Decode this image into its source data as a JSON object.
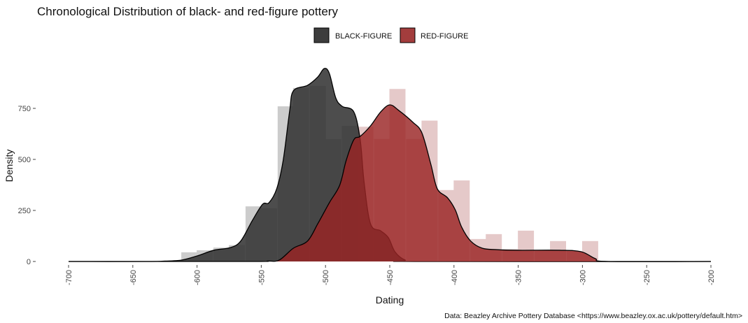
{
  "chart_data": {
    "type": "area",
    "title": "Chronological Distribution of black- and red-figure pottery",
    "xlabel": "Dating",
    "ylabel": "Density",
    "caption": "Data: Beazley Archive Pottery Database <https://www.beazley.ox.ac.uk/pottery/default.htm>",
    "xlim": [
      -700,
      -200
    ],
    "ylim": [
      0,
      950
    ],
    "xticks": [
      -700,
      -650,
      -600,
      -550,
      -500,
      -450,
      -400,
      -350,
      -300,
      -250,
      -200
    ],
    "yticks": [
      0,
      250,
      500,
      750
    ],
    "grid": false,
    "legend_position": "top",
    "bar_width_years": 12.5,
    "series": [
      {
        "name": "BLACK-FIGURE",
        "color": "#333333",
        "bar_color": "#cccccc",
        "bars": [
          [
            -606,
            45
          ],
          [
            -594,
            55
          ],
          [
            -581,
            68
          ],
          [
            -569,
            80
          ],
          [
            -556,
            270
          ],
          [
            -544,
            260
          ],
          [
            -531,
            760
          ],
          [
            -519,
            850
          ],
          [
            -506,
            860
          ],
          [
            -494,
            600
          ],
          [
            -481,
            664
          ]
        ],
        "curve": [
          [
            -700,
            0
          ],
          [
            -640,
            0
          ],
          [
            -625,
            2
          ],
          [
            -612,
            7
          ],
          [
            -600,
            27
          ],
          [
            -587,
            55
          ],
          [
            -574,
            68
          ],
          [
            -566,
            100
          ],
          [
            -557,
            200
          ],
          [
            -549,
            280
          ],
          [
            -544,
            288
          ],
          [
            -538,
            356
          ],
          [
            -533,
            493
          ],
          [
            -528,
            733
          ],
          [
            -525,
            836
          ],
          [
            -514,
            863
          ],
          [
            -506,
            904
          ],
          [
            -501,
            945
          ],
          [
            -497,
            921
          ],
          [
            -492,
            801
          ],
          [
            -487,
            760
          ],
          [
            -478,
            733
          ],
          [
            -473,
            596
          ],
          [
            -470,
            390
          ],
          [
            -465,
            185
          ],
          [
            -457,
            150
          ],
          [
            -451,
            116
          ],
          [
            -446,
            48
          ],
          [
            -438,
            7
          ],
          [
            -427,
            0
          ],
          [
            -200,
            0
          ]
        ]
      },
      {
        "name": "RED-FIGURE",
        "color": "#a33535",
        "bar_color": "#e5c9c9",
        "bars": [
          [
            -469,
            660
          ],
          [
            -456,
            600
          ],
          [
            -444,
            845
          ],
          [
            -431,
            600
          ],
          [
            -419,
            690
          ],
          [
            -406,
            350
          ],
          [
            -394,
            397
          ],
          [
            -381,
            110
          ],
          [
            -369,
            134
          ],
          [
            -356,
            60
          ],
          [
            -344,
            151
          ],
          [
            -331,
            55
          ],
          [
            -319,
            100
          ],
          [
            -306,
            50
          ],
          [
            -294,
            100
          ]
        ],
        "curve": [
          [
            -700,
            0
          ],
          [
            -560,
            0
          ],
          [
            -545,
            2
          ],
          [
            -536,
            7
          ],
          [
            -525,
            65
          ],
          [
            -514,
            100
          ],
          [
            -506,
            185
          ],
          [
            -497,
            288
          ],
          [
            -489,
            373
          ],
          [
            -484,
            493
          ],
          [
            -478,
            596
          ],
          [
            -473,
            613
          ],
          [
            -465,
            664
          ],
          [
            -457,
            733
          ],
          [
            -450,
            767
          ],
          [
            -443,
            740
          ],
          [
            -432,
            682
          ],
          [
            -425,
            630
          ],
          [
            -418,
            476
          ],
          [
            -413,
            356
          ],
          [
            -405,
            312
          ],
          [
            -399,
            253
          ],
          [
            -394,
            168
          ],
          [
            -387,
            100
          ],
          [
            -378,
            65
          ],
          [
            -367,
            58
          ],
          [
            -350,
            55
          ],
          [
            -318,
            55
          ],
          [
            -301,
            48
          ],
          [
            -290,
            14
          ],
          [
            -280,
            0
          ],
          [
            -200,
            0
          ]
        ]
      }
    ]
  }
}
